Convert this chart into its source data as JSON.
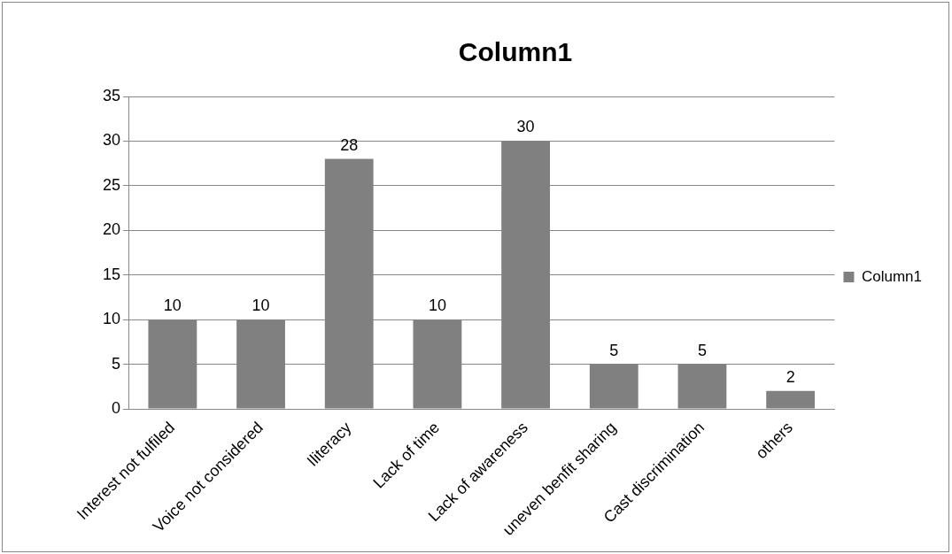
{
  "chart_data": {
    "type": "bar",
    "title": "Column1",
    "categories": [
      "Interest not fulfiled",
      "Voice not considered",
      "Iliteracy",
      "Lack of time",
      "Lack of awareness",
      "uneven benfit sharing",
      "Cast discrimination",
      "others"
    ],
    "series": [
      {
        "name": "Column1",
        "color": "#808080",
        "values": [
          10,
          10,
          28,
          10,
          30,
          5,
          5,
          2
        ]
      }
    ],
    "ylim": [
      0,
      35
    ],
    "yticks": [
      0,
      5,
      10,
      15,
      20,
      25,
      30,
      35
    ],
    "grid": "y",
    "legend": "right",
    "data_labels": true
  }
}
